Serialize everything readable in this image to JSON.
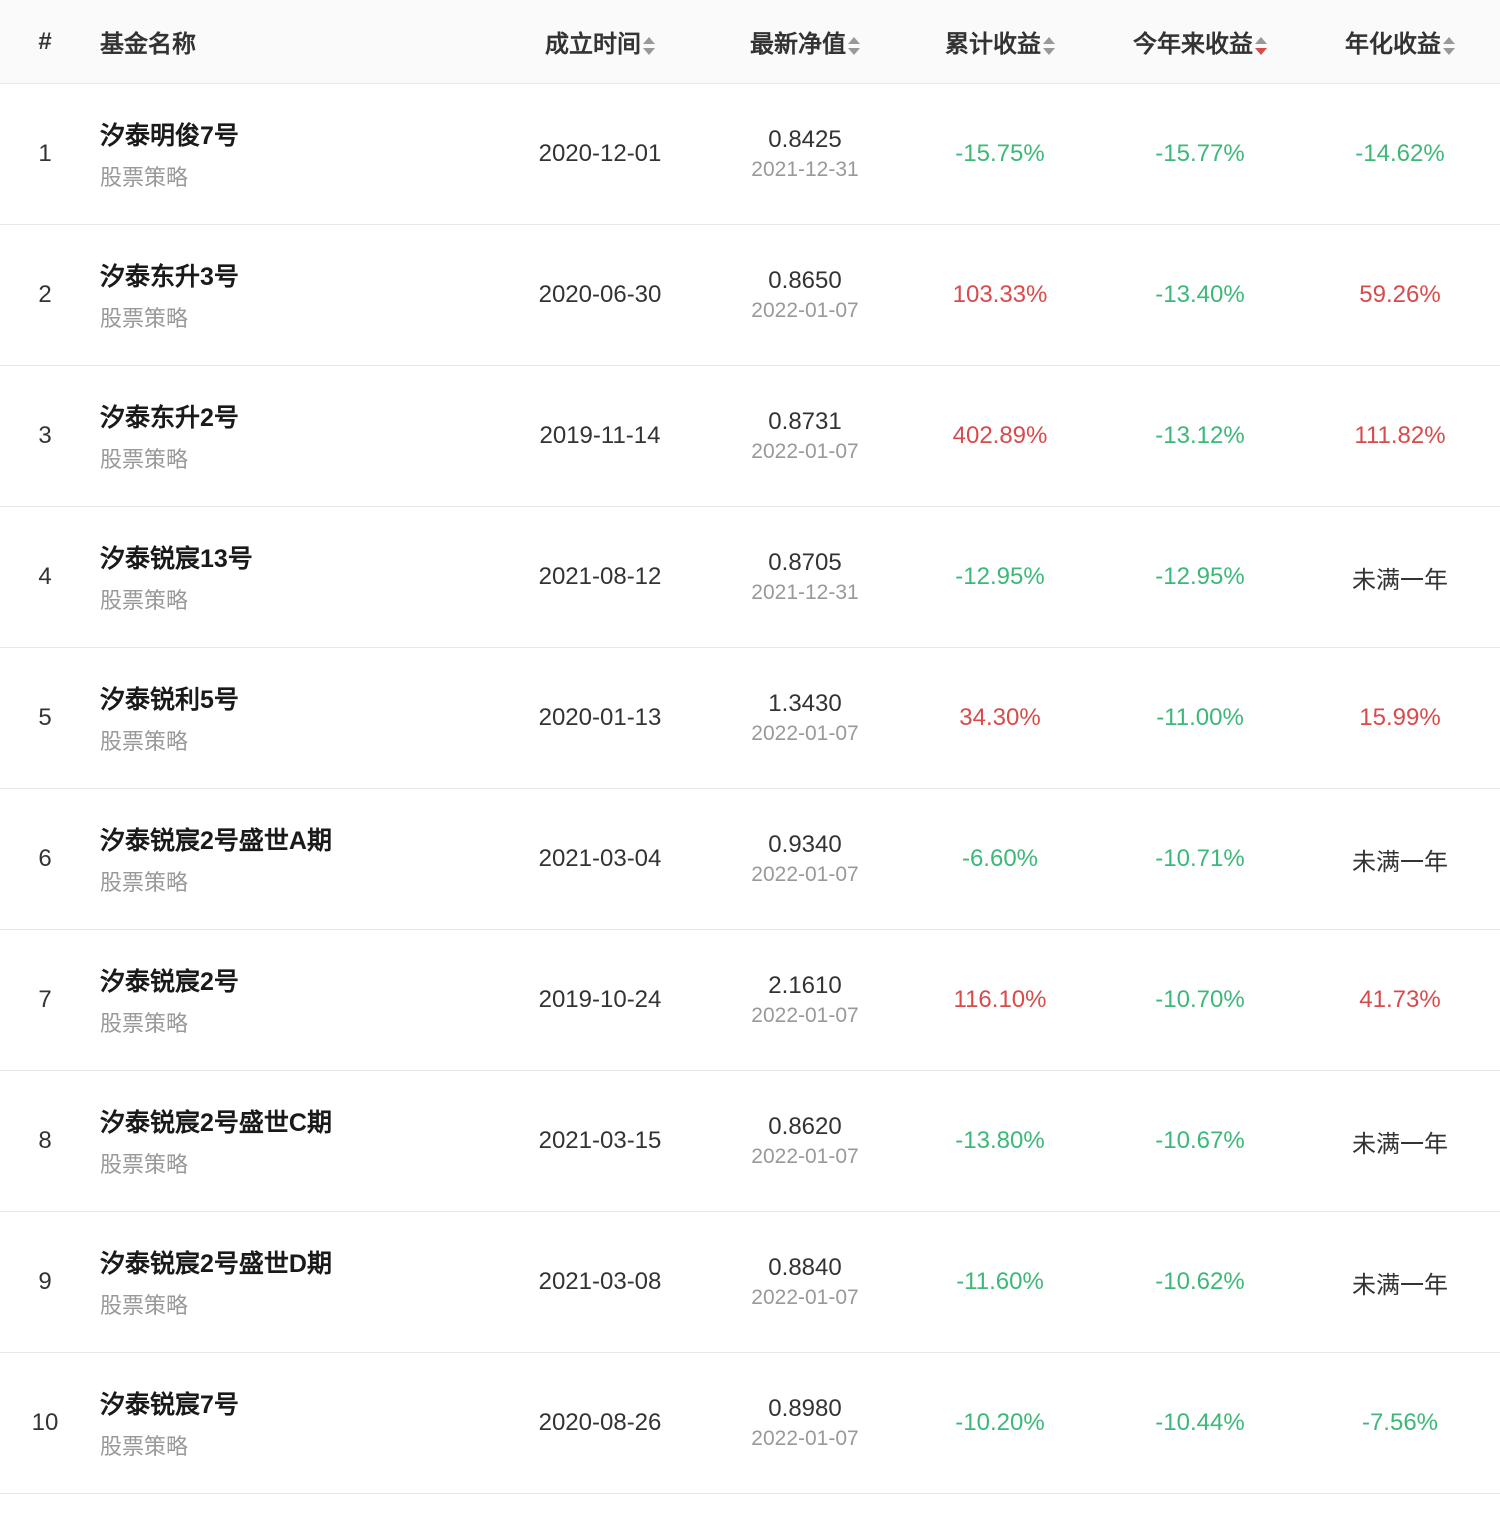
{
  "headers": {
    "index": "#",
    "name": "基金名称",
    "establishDate": "成立时间",
    "nav": "最新净值",
    "totalReturn": "累计收益",
    "ytdReturn": "今年来收益",
    "annualizedReturn": "年化收益"
  },
  "colors": {
    "positive": "#d94a4a",
    "negative": "#3cb878",
    "neutral": "#333333",
    "textPrimary": "#1a1a1a",
    "textSecondary": "#999999",
    "border": "#e8e8e8",
    "headerBg": "#fafafa",
    "rowBg": "#ffffff"
  },
  "sortColumn": "ytdReturn",
  "sortDirection": "down",
  "rows": [
    {
      "index": "1",
      "name": "汐泰明俊7号",
      "strategy": "股票策略",
      "establishDate": "2020-12-01",
      "navValue": "0.8425",
      "navDate": "2021-12-31",
      "totalReturn": "-15.75%",
      "totalReturnClass": "negative",
      "ytdReturn": "-15.77%",
      "ytdReturnClass": "negative",
      "annualizedReturn": "-14.62%",
      "annualizedReturnClass": "negative"
    },
    {
      "index": "2",
      "name": "汐泰东升3号",
      "strategy": "股票策略",
      "establishDate": "2020-06-30",
      "navValue": "0.8650",
      "navDate": "2022-01-07",
      "totalReturn": "103.33%",
      "totalReturnClass": "positive",
      "ytdReturn": "-13.40%",
      "ytdReturnClass": "negative",
      "annualizedReturn": "59.26%",
      "annualizedReturnClass": "positive"
    },
    {
      "index": "3",
      "name": "汐泰东升2号",
      "strategy": "股票策略",
      "establishDate": "2019-11-14",
      "navValue": "0.8731",
      "navDate": "2022-01-07",
      "totalReturn": "402.89%",
      "totalReturnClass": "positive",
      "ytdReturn": "-13.12%",
      "ytdReturnClass": "negative",
      "annualizedReturn": "111.82%",
      "annualizedReturnClass": "positive"
    },
    {
      "index": "4",
      "name": "汐泰锐宸13号",
      "strategy": "股票策略",
      "establishDate": "2021-08-12",
      "navValue": "0.8705",
      "navDate": "2021-12-31",
      "totalReturn": "-12.95%",
      "totalReturnClass": "negative",
      "ytdReturn": "-12.95%",
      "ytdReturnClass": "negative",
      "annualizedReturn": "未满一年",
      "annualizedReturnClass": "neutral"
    },
    {
      "index": "5",
      "name": "汐泰锐利5号",
      "strategy": "股票策略",
      "establishDate": "2020-01-13",
      "navValue": "1.3430",
      "navDate": "2022-01-07",
      "totalReturn": "34.30%",
      "totalReturnClass": "positive",
      "ytdReturn": "-11.00%",
      "ytdReturnClass": "negative",
      "annualizedReturn": "15.99%",
      "annualizedReturnClass": "positive"
    },
    {
      "index": "6",
      "name": "汐泰锐宸2号盛世A期",
      "strategy": "股票策略",
      "establishDate": "2021-03-04",
      "navValue": "0.9340",
      "navDate": "2022-01-07",
      "totalReturn": "-6.60%",
      "totalReturnClass": "negative",
      "ytdReturn": "-10.71%",
      "ytdReturnClass": "negative",
      "annualizedReturn": "未满一年",
      "annualizedReturnClass": "neutral"
    },
    {
      "index": "7",
      "name": "汐泰锐宸2号",
      "strategy": "股票策略",
      "establishDate": "2019-10-24",
      "navValue": "2.1610",
      "navDate": "2022-01-07",
      "totalReturn": "116.10%",
      "totalReturnClass": "positive",
      "ytdReturn": "-10.70%",
      "ytdReturnClass": "negative",
      "annualizedReturn": "41.73%",
      "annualizedReturnClass": "positive"
    },
    {
      "index": "8",
      "name": "汐泰锐宸2号盛世C期",
      "strategy": "股票策略",
      "establishDate": "2021-03-15",
      "navValue": "0.8620",
      "navDate": "2022-01-07",
      "totalReturn": "-13.80%",
      "totalReturnClass": "negative",
      "ytdReturn": "-10.67%",
      "ytdReturnClass": "negative",
      "annualizedReturn": "未满一年",
      "annualizedReturnClass": "neutral"
    },
    {
      "index": "9",
      "name": "汐泰锐宸2号盛世D期",
      "strategy": "股票策略",
      "establishDate": "2021-03-08",
      "navValue": "0.8840",
      "navDate": "2022-01-07",
      "totalReturn": "-11.60%",
      "totalReturnClass": "negative",
      "ytdReturn": "-10.62%",
      "ytdReturnClass": "negative",
      "annualizedReturn": "未满一年",
      "annualizedReturnClass": "neutral"
    },
    {
      "index": "10",
      "name": "汐泰锐宸7号",
      "strategy": "股票策略",
      "establishDate": "2020-08-26",
      "navValue": "0.8980",
      "navDate": "2022-01-07",
      "totalReturn": "-10.20%",
      "totalReturnClass": "negative",
      "ytdReturn": "-10.44%",
      "ytdReturnClass": "negative",
      "annualizedReturn": "-7.56%",
      "annualizedReturnClass": "negative"
    }
  ]
}
